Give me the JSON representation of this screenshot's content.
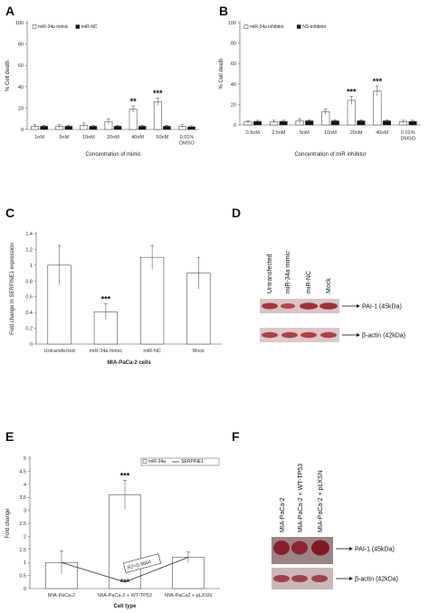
{
  "panels": {
    "A": {
      "letter": "A"
    },
    "B": {
      "letter": "B"
    },
    "C": {
      "letter": "C"
    },
    "D": {
      "letter": "D"
    },
    "E": {
      "letter": "E"
    },
    "F": {
      "letter": "F"
    }
  },
  "chart_data": [
    {
      "id": "A",
      "type": "bar",
      "categories": [
        "1nM",
        "5nM",
        "10nM",
        "20nM",
        "40nM",
        "50nM",
        "0.01%\nDMSO"
      ],
      "series": [
        {
          "name": "miR-34a mimic",
          "values": [
            3,
            3,
            4,
            7.5,
            19,
            26,
            3
          ],
          "errors": [
            1.5,
            1.5,
            2,
            2.5,
            3,
            3.5,
            1.5
          ],
          "color": "#ffffff"
        },
        {
          "name": "miR-NC",
          "values": [
            3,
            3,
            3,
            3,
            3,
            3,
            2.5
          ],
          "errors": [
            1,
            1,
            1,
            1,
            1,
            1,
            1
          ],
          "color": "#111111"
        }
      ],
      "significance": [
        "",
        "",
        "",
        "",
        "**",
        "***",
        ""
      ],
      "xlabel": "Concentration of mimic",
      "ylabel": "% Cell death",
      "ylim": [
        0,
        100
      ],
      "yticks": [
        0,
        20,
        40,
        60,
        80,
        100
      ],
      "legend": "top-left"
    },
    {
      "id": "B",
      "type": "bar",
      "categories": [
        "0.5nM",
        "2.5nM",
        "5nM",
        "10nM",
        "20nM",
        "40nM",
        "0.01%\nDMSO"
      ],
      "series": [
        {
          "name": "miR-34a inhibitor",
          "values": [
            3,
            3,
            4,
            13,
            24,
            33,
            3
          ],
          "errors": [
            1,
            1.5,
            2,
            2.5,
            4,
            5,
            1.5
          ],
          "color": "#ffffff"
        },
        {
          "name": "NS-inhibitor",
          "values": [
            3.5,
            3.5,
            4,
            4,
            4,
            4,
            3.5
          ],
          "errors": [
            1,
            1,
            1,
            1,
            1,
            1,
            1
          ],
          "color": "#111111"
        }
      ],
      "significance": [
        "",
        "",
        "",
        "",
        "***",
        "***",
        ""
      ],
      "xlabel": "Concentration of miR inhibitor",
      "ylabel": "% Cell death",
      "ylim": [
        0,
        100
      ],
      "yticks": [
        0,
        20,
        40,
        60,
        80,
        100
      ],
      "legend": "top-left"
    },
    {
      "id": "C",
      "type": "bar",
      "categories": [
        "Untransfected",
        "miR-34a mimic",
        "miR-NC",
        "Mock"
      ],
      "series": [
        {
          "name": "",
          "values": [
            1.0,
            0.41,
            1.1,
            0.9
          ],
          "errors": [
            0.25,
            0.1,
            0.15,
            0.2
          ],
          "color": "#ffffff"
        }
      ],
      "significance": [
        "",
        "***",
        "",
        ""
      ],
      "xlabel": "MIA-PaCa-2 cells",
      "ylabel": "Fold change in SERPINE1 expression",
      "ylim": [
        0,
        1.4
      ],
      "yticks": [
        0,
        0.2,
        0.4,
        0.6,
        0.8,
        1,
        1.2,
        1.4
      ],
      "ytick_labels": [
        "0",
        "0.2",
        "0.4",
        "0.6",
        "0.8",
        "1",
        "1.2",
        "1.4"
      ]
    },
    {
      "id": "E",
      "type": "bar",
      "categories": [
        "MIA-PaCa-2",
        "MIA-PaCa-2 + WT-TP53",
        "MIA-PaCa2 + pLXSN"
      ],
      "series": [
        {
          "name": "miR-34a",
          "kind": "bar",
          "values": [
            1.0,
            3.6,
            1.2
          ],
          "errors": [
            0.45,
            0.55,
            0.2
          ],
          "color": "#ffffff"
        },
        {
          "name": "SERPINE1",
          "kind": "line",
          "values": [
            1.0,
            0.25,
            1.2
          ]
        }
      ],
      "significance_bar": [
        "",
        "***",
        ""
      ],
      "significance_line": [
        "",
        "***",
        ""
      ],
      "annotation": "R2=0.9664",
      "xlabel": "Cell type",
      "ylabel": "Fold change",
      "ylim": [
        0,
        5
      ],
      "yticks": [
        0,
        0.5,
        1,
        1.5,
        2,
        2.5,
        3,
        3.5,
        4,
        4.5,
        5
      ],
      "ytick_labels": [
        "0",
        "0.5",
        "1",
        "1.5",
        "2",
        "2.5",
        "3",
        "3.5",
        "4",
        "4.5",
        "5"
      ],
      "legend": "top-right"
    }
  ],
  "blot_D": {
    "lanes": [
      "Untransfected",
      "miR-34a mimic",
      "miR-NC",
      "Mock"
    ],
    "band_labels": [
      "PAI-1 (45kDa)",
      "β-actin (42kDa)"
    ]
  },
  "blot_F": {
    "lanes": [
      "MIA-PaCa-2",
      "MIA-PaCa-2 + WT-TP53",
      "MIA-PaCa-2 + pLXSN"
    ],
    "band_labels": [
      "PAI-1 (45kDa)",
      "β-actin (42kDa)"
    ]
  }
}
